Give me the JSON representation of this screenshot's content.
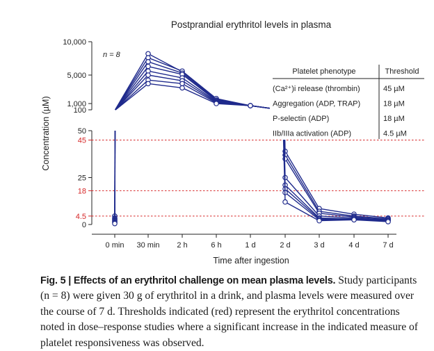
{
  "figure": {
    "label": "Fig. 5",
    "caption_title": "Effects of an erythritol challenge on mean plasma levels.",
    "caption_text": "Study participants (n = 8) were given 30 g of erythritol in a drink, and plasma levels were measured over the course of 7 d. Thresholds indicated (red) represent the erythritol concentrations noted in dose–response studies where a significant increase in the indicated measure of platelet responsiveness was observed."
  },
  "chart_data": {
    "type": "line",
    "title": "Postprandial erythritol levels in plasma",
    "xlabel": "Time after ingestion",
    "ylabel": "Concentration (µM)",
    "annotation": "n = 8",
    "categories": [
      "0 min",
      "30 min",
      "2 h",
      "6 h",
      "1 d",
      "2 d",
      "3 d",
      "4 d",
      "7 d"
    ],
    "y_axis": {
      "broken": true,
      "lower_segment": {
        "range": [
          0,
          50
        ],
        "ticks": [
          "0",
          "4.5",
          "18",
          "25",
          "45",
          "50"
        ]
      },
      "upper_segment": {
        "range": [
          100,
          10000
        ],
        "ticks": [
          "100",
          "1,000",
          "5,000",
          "10,000"
        ]
      }
    },
    "thresholds": [
      {
        "value": 45,
        "label": "45",
        "color": "#d62728"
      },
      {
        "value": 18,
        "label": "18",
        "color": "#d62728"
      },
      {
        "value": 4.5,
        "label": "4.5",
        "color": "#d62728"
      }
    ],
    "series_color": "#1f2a8c",
    "series": [
      {
        "values": [
          4.5,
          8200,
          5500,
          1600,
          700,
          39,
          8.5,
          5.5,
          3.5
        ]
      },
      {
        "values": [
          3.5,
          7600,
          5600,
          1700,
          700,
          37,
          7.0,
          4.5,
          3.0
        ]
      },
      {
        "values": [
          3.0,
          7000,
          5300,
          1500,
          700,
          35,
          6.0,
          4.0,
          3.0
        ]
      },
      {
        "values": [
          2.5,
          6300,
          5100,
          1400,
          700,
          25,
          4.5,
          3.5,
          2.5
        ]
      },
      {
        "values": [
          2.0,
          5600,
          4600,
          1300,
          700,
          21,
          3.5,
          3.0,
          2.5
        ]
      },
      {
        "values": [
          1.5,
          5000,
          4200,
          1200,
          700,
          19,
          3.0,
          3.0,
          2.0
        ]
      },
      {
        "values": [
          1.0,
          4300,
          3800,
          1100,
          700,
          17,
          2.5,
          2.5,
          2.0
        ]
      },
      {
        "values": [
          0.5,
          3800,
          3200,
          1000,
          700,
          12,
          2.0,
          2.5,
          1.5
        ]
      }
    ],
    "table": {
      "headers": [
        "Platelet phenotype",
        "Threshold"
      ],
      "rows": [
        [
          "(Ca²⁺)i release (thrombin)",
          "45 µM"
        ],
        [
          "Aggregation (ADP, TRAP)",
          "18 µM"
        ],
        [
          "P-selectin (ADP)",
          "18 µM"
        ],
        [
          "IIb/IIIa activation (ADP)",
          "4.5 µM"
        ]
      ]
    }
  }
}
